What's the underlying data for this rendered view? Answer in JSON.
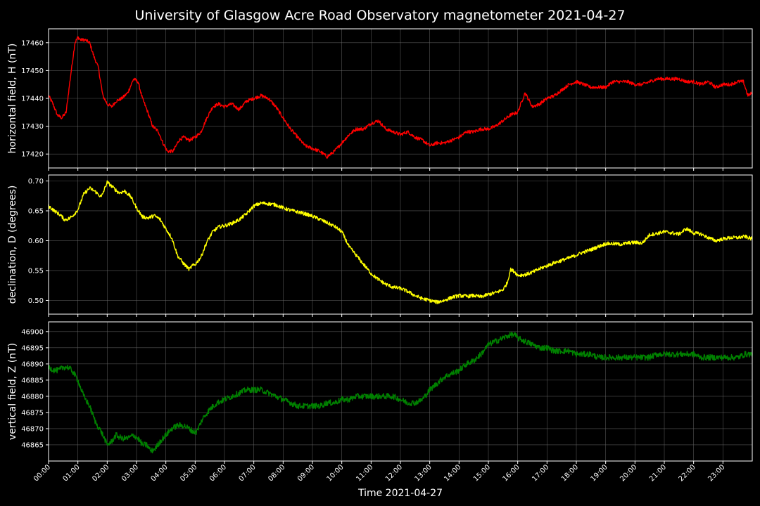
{
  "title": "University of Glasgow Acre Road Observatory magnetometer 2021-04-27",
  "xlabel": "Time 2021-04-27",
  "x_ticks": [
    "00:00",
    "01:00",
    "02:00",
    "03:00",
    "04:00",
    "05:00",
    "06:00",
    "07:00",
    "08:00",
    "09:00",
    "10:00",
    "11:00",
    "12:00",
    "13:00",
    "14:00",
    "15:00",
    "16:00",
    "17:00",
    "18:00",
    "19:00",
    "20:00",
    "21:00",
    "22:00",
    "23:00"
  ],
  "chart_data": [
    {
      "type": "line",
      "ylabel": "horizontal field, H (nT)",
      "color": "#ff0000",
      "xlim": [
        0,
        24
      ],
      "ylim": [
        17415,
        17465
      ],
      "yticks": [
        17420,
        17430,
        17440,
        17450,
        17460
      ],
      "tick_decimals": 0,
      "noise": 0.6,
      "series": [
        {
          "x": [
            0,
            0.15,
            0.3,
            0.45,
            0.6,
            0.75,
            0.9,
            1.0,
            1.1,
            1.25,
            1.4,
            1.55,
            1.7,
            1.85,
            2.0,
            2.15,
            2.3,
            2.5,
            2.7,
            2.9,
            3.05,
            3.2,
            3.35,
            3.55,
            3.75,
            3.9,
            4.05,
            4.25,
            4.45,
            4.6,
            4.8,
            5.0,
            5.2,
            5.4,
            5.6,
            5.8,
            6.0,
            6.25,
            6.5,
            6.75,
            7.0,
            7.25,
            7.5,
            7.75,
            8.0,
            8.25,
            8.5,
            8.75,
            9.0,
            9.25,
            9.5,
            9.75,
            10.0,
            10.25,
            10.5,
            10.75,
            11.0,
            11.25,
            11.5,
            11.75,
            12.0,
            12.25,
            12.5,
            12.75,
            13.0,
            13.25,
            13.5,
            13.75,
            14.0,
            14.25,
            14.5,
            14.75,
            15.0,
            15.25,
            15.5,
            15.75,
            16.0,
            16.25,
            16.5,
            16.75,
            17.0,
            17.25,
            17.5,
            17.75,
            18.0,
            18.25,
            18.5,
            18.75,
            19.0,
            19.25,
            19.5,
            19.75,
            20.0,
            20.25,
            20.5,
            20.75,
            21.0,
            21.25,
            21.5,
            21.75,
            22.0,
            22.25,
            22.5,
            22.75,
            23.0,
            23.25,
            23.5,
            23.7,
            23.85,
            24.0
          ],
          "y": [
            17441,
            17438,
            17434,
            17433,
            17435,
            17448,
            17460,
            17462,
            17461,
            17461,
            17460,
            17455,
            17451,
            17441,
            17438,
            17437,
            17439,
            17440,
            17442,
            17447,
            17446,
            17440,
            17436,
            17430,
            17428,
            17424,
            17421,
            17421,
            17425,
            17426,
            17425,
            17426,
            17428,
            17433,
            17437,
            17438,
            17437,
            17438,
            17436,
            17439,
            17440,
            17441,
            17440,
            17437,
            17433,
            17429,
            17426,
            17423,
            17422,
            17421,
            17419,
            17421,
            17424,
            17427,
            17429,
            17429,
            17431,
            17432,
            17429,
            17428,
            17427,
            17428,
            17426,
            17425,
            17423,
            17424,
            17424,
            17425,
            17426,
            17428,
            17428,
            17429,
            17429,
            17430,
            17432,
            17434,
            17435,
            17442,
            17437,
            17438,
            17440,
            17441,
            17443,
            17445,
            17446,
            17445,
            17444,
            17444,
            17444,
            17446,
            17446,
            17446,
            17445,
            17445,
            17446,
            17447,
            17447,
            17447,
            17447,
            17446,
            17446,
            17445,
            17446,
            17444,
            17445,
            17445,
            17446,
            17446,
            17441,
            17442
          ]
        }
      ]
    },
    {
      "type": "line",
      "ylabel": "declination, D (degrees)",
      "color": "#ffff00",
      "xlim": [
        0,
        24
      ],
      "ylim": [
        0.477,
        0.71
      ],
      "yticks": [
        0.5,
        0.55,
        0.6,
        0.65,
        0.7
      ],
      "tick_decimals": 2,
      "noise": 0.003,
      "series": [
        {
          "x": [
            0,
            0.2,
            0.4,
            0.55,
            0.7,
            0.85,
            1.0,
            1.2,
            1.4,
            1.6,
            1.8,
            2.0,
            2.2,
            2.4,
            2.6,
            2.8,
            3.0,
            3.2,
            3.4,
            3.6,
            3.8,
            4.0,
            4.2,
            4.4,
            4.6,
            4.8,
            4.9,
            5.0,
            5.2,
            5.4,
            5.6,
            5.8,
            6.0,
            6.2,
            6.5,
            6.75,
            7.0,
            7.25,
            7.5,
            7.75,
            8.0,
            8.25,
            8.5,
            8.75,
            9.0,
            9.25,
            9.5,
            9.75,
            10.0,
            10.25,
            10.5,
            10.75,
            11.0,
            11.25,
            11.5,
            11.75,
            12.0,
            12.25,
            12.5,
            12.75,
            13.0,
            13.25,
            13.5,
            13.75,
            14.0,
            14.25,
            14.5,
            14.75,
            15.0,
            15.25,
            15.5,
            15.65,
            15.75,
            15.9,
            16.0,
            16.25,
            16.5,
            16.75,
            17.0,
            17.25,
            17.5,
            17.75,
            18.0,
            18.25,
            18.5,
            18.75,
            19.0,
            19.25,
            19.5,
            19.75,
            20.0,
            20.25,
            20.5,
            20.75,
            21.0,
            21.25,
            21.5,
            21.75,
            22.0,
            22.25,
            22.5,
            22.75,
            23.0,
            23.25,
            23.5,
            23.75,
            24.0
          ],
          "y": [
            0.658,
            0.65,
            0.643,
            0.635,
            0.637,
            0.643,
            0.652,
            0.678,
            0.688,
            0.682,
            0.673,
            0.698,
            0.689,
            0.68,
            0.683,
            0.674,
            0.655,
            0.64,
            0.638,
            0.642,
            0.636,
            0.62,
            0.605,
            0.575,
            0.562,
            0.552,
            0.558,
            0.56,
            0.573,
            0.598,
            0.615,
            0.623,
            0.625,
            0.628,
            0.635,
            0.645,
            0.658,
            0.663,
            0.662,
            0.66,
            0.655,
            0.651,
            0.648,
            0.645,
            0.641,
            0.636,
            0.63,
            0.624,
            0.615,
            0.59,
            0.575,
            0.56,
            0.545,
            0.535,
            0.527,
            0.522,
            0.52,
            0.515,
            0.508,
            0.503,
            0.5,
            0.497,
            0.5,
            0.505,
            0.508,
            0.507,
            0.508,
            0.506,
            0.51,
            0.513,
            0.518,
            0.53,
            0.552,
            0.548,
            0.542,
            0.543,
            0.547,
            0.553,
            0.558,
            0.563,
            0.567,
            0.571,
            0.576,
            0.581,
            0.585,
            0.59,
            0.595,
            0.595,
            0.594,
            0.596,
            0.597,
            0.596,
            0.61,
            0.612,
            0.615,
            0.613,
            0.611,
            0.62,
            0.613,
            0.611,
            0.605,
            0.6,
            0.603,
            0.605,
            0.605,
            0.607,
            0.603
          ]
        }
      ]
    },
    {
      "type": "line",
      "ylabel": "vertical field, Z (nT)",
      "color": "#008000",
      "xlim": [
        0,
        24
      ],
      "ylim": [
        46860,
        46903
      ],
      "yticks": [
        46865,
        46870,
        46875,
        46880,
        46885,
        46890,
        46895,
        46900
      ],
      "tick_decimals": 0,
      "noise": 0.9,
      "series": [
        {
          "x": [
            0,
            0.2,
            0.35,
            0.5,
            0.65,
            0.8,
            1.0,
            1.2,
            1.4,
            1.6,
            1.8,
            2.0,
            2.15,
            2.3,
            2.5,
            2.7,
            2.9,
            3.05,
            3.2,
            3.35,
            3.5,
            3.65,
            3.8,
            4.0,
            4.2,
            4.4,
            4.6,
            4.8,
            4.95,
            5.05,
            5.25,
            5.5,
            5.75,
            6.0,
            6.25,
            6.5,
            6.75,
            7.0,
            7.25,
            7.5,
            7.75,
            8.0,
            8.25,
            8.5,
            8.75,
            9.0,
            9.25,
            9.5,
            9.75,
            10.0,
            10.25,
            10.5,
            10.75,
            11.0,
            11.25,
            11.5,
            11.75,
            12.0,
            12.25,
            12.5,
            12.75,
            13.0,
            13.25,
            13.5,
            13.75,
            14.0,
            14.25,
            14.5,
            14.75,
            15.0,
            15.25,
            15.5,
            15.75,
            15.9,
            16.0,
            16.25,
            16.5,
            16.75,
            17.0,
            17.25,
            17.5,
            17.75,
            18.0,
            18.25,
            18.5,
            18.75,
            19.0,
            19.25,
            19.5,
            19.75,
            20.0,
            20.25,
            20.5,
            20.75,
            21.0,
            21.25,
            21.5,
            21.75,
            22.0,
            22.25,
            22.5,
            22.75,
            23.0,
            23.25,
            23.5,
            23.75,
            24.0
          ],
          "y": [
            46889,
            46888,
            46888,
            46889,
            46889,
            46888,
            46885,
            46880,
            46877,
            46872,
            46869,
            46865,
            46866,
            46868,
            46867,
            46867,
            46868,
            46867,
            46865,
            46865,
            46863,
            46864,
            46866,
            46868,
            46870,
            46871,
            46871,
            46870,
            46869,
            46869,
            46873,
            46876,
            46878,
            46879,
            46880,
            46881,
            46882,
            46882,
            46882,
            46881,
            46880,
            46879,
            46878,
            46877,
            46877,
            46877,
            46877,
            46878,
            46878,
            46879,
            46879,
            46880,
            46880,
            46880,
            46880,
            46880,
            46880,
            46879,
            46878,
            46878,
            46879,
            46882,
            46884,
            46886,
            46887,
            46888,
            46890,
            46891,
            46893,
            46896,
            46897,
            46898,
            46899,
            46899,
            46898,
            46897,
            46896,
            46895,
            46895,
            46894,
            46894,
            46894,
            46893,
            46893,
            46893,
            46892,
            46892,
            46892,
            46892,
            46892,
            46892,
            46892,
            46892,
            46893,
            46893,
            46893,
            46893,
            46893,
            46893,
            46892,
            46892,
            46892,
            46892,
            46892,
            46892,
            46893,
            46893
          ]
        }
      ]
    }
  ]
}
